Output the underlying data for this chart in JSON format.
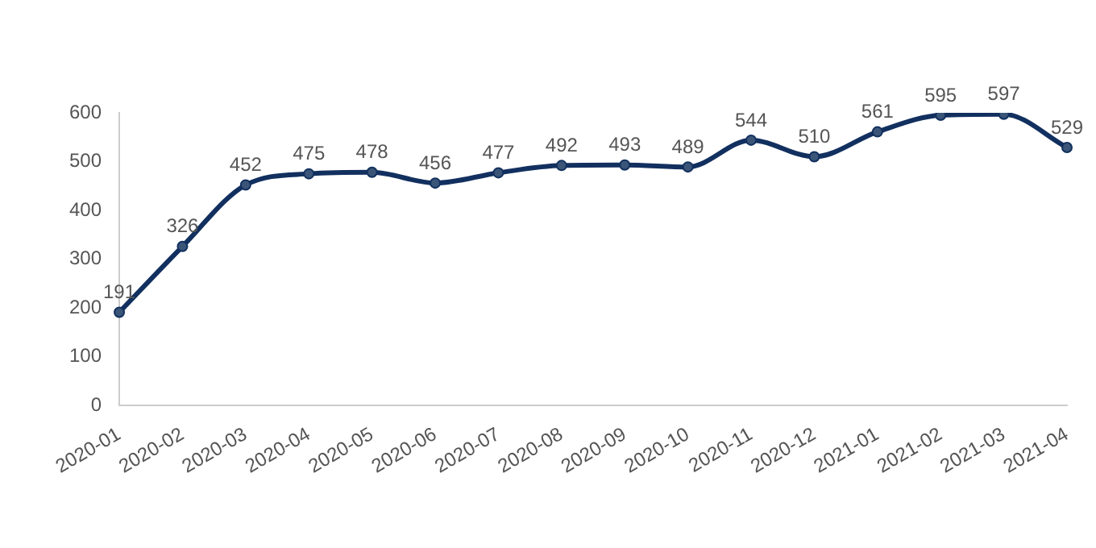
{
  "chart_data": {
    "type": "line",
    "categories": [
      "2020-01",
      "2020-02",
      "2020-03",
      "2020-04",
      "2020-05",
      "2020-06",
      "2020-07",
      "2020-08",
      "2020-09",
      "2020-10",
      "2020-11",
      "2020-12",
      "2021-01",
      "2021-02",
      "2021-03",
      "2021-04"
    ],
    "series": [
      {
        "color": "#12305f",
        "values": [
          191,
          326,
          452,
          475,
          478,
          456,
          477,
          492,
          493,
          489,
          544,
          510,
          561,
          595,
          597,
          529
        ]
      }
    ],
    "ylim": [
      0,
      600
    ],
    "yticks": [
      0,
      100,
      200,
      300,
      400,
      500,
      600
    ],
    "grid": false,
    "marker": "circle",
    "line_style": "solid",
    "data_labels": true
  }
}
